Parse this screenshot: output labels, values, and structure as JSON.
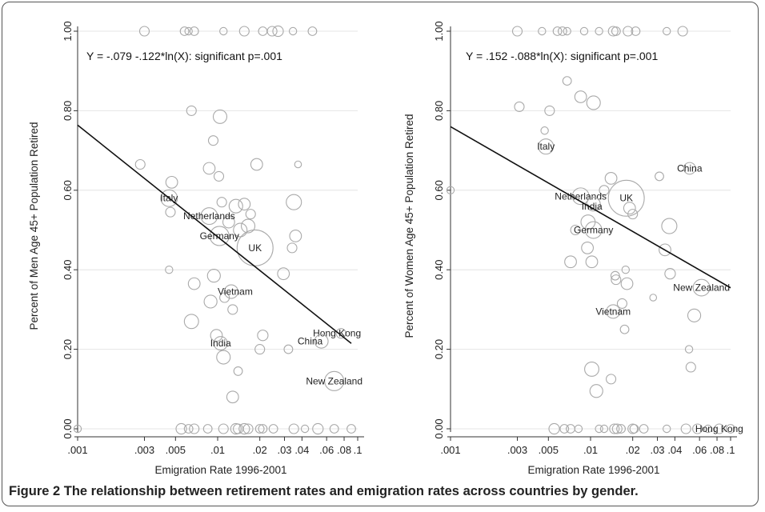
{
  "caption": "Figure 2 The relationship between retirement rates and emigration rates across countries by gender.",
  "chart_data": [
    {
      "type": "scatter",
      "subtitle": "Y =  -.079 -.122*ln(X): significant p=.001",
      "xlabel": "Emigration Rate 1996-2001",
      "ylabel": "Percent of Men Age 45+ Population Retired",
      "xscale": "log",
      "xlim": [
        0.001,
        0.1
      ],
      "ylim": [
        0,
        1
      ],
      "x_ticks": [
        ".001",
        ".003",
        ".005",
        ".01",
        ".02",
        ".03",
        ".04",
        ".06",
        ".08",
        ".1"
      ],
      "y_ticks": [
        "0.00",
        "0.20",
        "0.40",
        "0.60",
        "0.80",
        "1.00"
      ],
      "grid": true,
      "fit_line": {
        "intercept": -0.079,
        "slope": -0.122,
        "x_range": [
          0.001,
          0.09
        ]
      },
      "labeled_points": [
        {
          "label": "Italy",
          "x": 0.0045,
          "y": 0.58,
          "size": 3
        },
        {
          "label": "Netherlands",
          "x": 0.0087,
          "y": 0.535,
          "size": 3
        },
        {
          "label": "Germany",
          "x": 0.0103,
          "y": 0.485,
          "size": 4
        },
        {
          "label": "UK",
          "x": 0.0185,
          "y": 0.455,
          "size": 14
        },
        {
          "label": "Vietnam",
          "x": 0.0125,
          "y": 0.345,
          "size": 2
        },
        {
          "label": "India",
          "x": 0.0105,
          "y": 0.215,
          "size": 2
        },
        {
          "label": "Hong Kong",
          "x": 0.076,
          "y": 0.24,
          "size": 1
        },
        {
          "label": "China",
          "x": 0.055,
          "y": 0.22,
          "size": 2
        },
        {
          "label": "New Zealand",
          "x": 0.068,
          "y": 0.12,
          "size": 4
        }
      ],
      "points": [
        {
          "x": 0.0028,
          "y": 0.665,
          "size": 1
        },
        {
          "x": 0.0047,
          "y": 0.62,
          "size": 1.5
        },
        {
          "x": 0.0046,
          "y": 0.545,
          "size": 1
        },
        {
          "x": 0.0045,
          "y": 0.4,
          "size": 0.6
        },
        {
          "x": 0.0065,
          "y": 0.8,
          "size": 1
        },
        {
          "x": 0.0104,
          "y": 0.785,
          "size": 2
        },
        {
          "x": 0.0093,
          "y": 0.725,
          "size": 1
        },
        {
          "x": 0.0087,
          "y": 0.655,
          "size": 1.5
        },
        {
          "x": 0.0102,
          "y": 0.635,
          "size": 1
        },
        {
          "x": 0.0107,
          "y": 0.57,
          "size": 1
        },
        {
          "x": 0.012,
          "y": 0.52,
          "size": 1.5
        },
        {
          "x": 0.0135,
          "y": 0.56,
          "size": 2
        },
        {
          "x": 0.0155,
          "y": 0.565,
          "size": 1.5
        },
        {
          "x": 0.0172,
          "y": 0.54,
          "size": 1
        },
        {
          "x": 0.019,
          "y": 0.665,
          "size": 1.5
        },
        {
          "x": 0.0165,
          "y": 0.51,
          "size": 2
        },
        {
          "x": 0.0145,
          "y": 0.5,
          "size": 2
        },
        {
          "x": 0.035,
          "y": 0.57,
          "size": 2.5
        },
        {
          "x": 0.036,
          "y": 0.485,
          "size": 1.5
        },
        {
          "x": 0.034,
          "y": 0.455,
          "size": 1
        },
        {
          "x": 0.0375,
          "y": 0.665,
          "size": 0.5
        },
        {
          "x": 0.0295,
          "y": 0.39,
          "size": 1.5
        },
        {
          "x": 0.0068,
          "y": 0.365,
          "size": 1.5
        },
        {
          "x": 0.0089,
          "y": 0.32,
          "size": 1.8
        },
        {
          "x": 0.0094,
          "y": 0.385,
          "size": 1.8
        },
        {
          "x": 0.0112,
          "y": 0.33,
          "size": 1
        },
        {
          "x": 0.0128,
          "y": 0.3,
          "size": 1
        },
        {
          "x": 0.0065,
          "y": 0.27,
          "size": 2.2
        },
        {
          "x": 0.0098,
          "y": 0.235,
          "size": 1.5
        },
        {
          "x": 0.011,
          "y": 0.18,
          "size": 2
        },
        {
          "x": 0.014,
          "y": 0.145,
          "size": 0.8
        },
        {
          "x": 0.0128,
          "y": 0.08,
          "size": 1.5
        },
        {
          "x": 0.021,
          "y": 0.235,
          "size": 1.2
        },
        {
          "x": 0.02,
          "y": 0.2,
          "size": 1
        },
        {
          "x": 0.032,
          "y": 0.2,
          "size": 0.8
        },
        {
          "x": 0.003,
          "y": 1.0,
          "size": 1
        },
        {
          "x": 0.0058,
          "y": 1.0,
          "size": 0.8
        },
        {
          "x": 0.0062,
          "y": 1.0,
          "size": 0.6
        },
        {
          "x": 0.0068,
          "y": 1.0,
          "size": 0.8
        },
        {
          "x": 0.011,
          "y": 1.0,
          "size": 0.6
        },
        {
          "x": 0.0155,
          "y": 1.0,
          "size": 1
        },
        {
          "x": 0.021,
          "y": 1.0,
          "size": 0.8
        },
        {
          "x": 0.0245,
          "y": 1.0,
          "size": 1
        },
        {
          "x": 0.027,
          "y": 1.0,
          "size": 1.2
        },
        {
          "x": 0.0345,
          "y": 1.0,
          "size": 0.6
        },
        {
          "x": 0.0475,
          "y": 1.0,
          "size": 0.8
        },
        {
          "x": 0.001,
          "y": 0.0,
          "size": 0.6
        },
        {
          "x": 0.0055,
          "y": 0.0,
          "size": 1.2
        },
        {
          "x": 0.0062,
          "y": 0.0,
          "size": 0.8
        },
        {
          "x": 0.0068,
          "y": 0.0,
          "size": 1
        },
        {
          "x": 0.0085,
          "y": 0.0,
          "size": 0.8
        },
        {
          "x": 0.011,
          "y": 0.0,
          "size": 1
        },
        {
          "x": 0.0135,
          "y": 0.0,
          "size": 1.2
        },
        {
          "x": 0.014,
          "y": 0.0,
          "size": 1
        },
        {
          "x": 0.0155,
          "y": 0.0,
          "size": 1.2
        },
        {
          "x": 0.0165,
          "y": 0.0,
          "size": 1
        },
        {
          "x": 0.02,
          "y": 0.0,
          "size": 0.8
        },
        {
          "x": 0.021,
          "y": 0.0,
          "size": 0.8
        },
        {
          "x": 0.025,
          "y": 0.0,
          "size": 0.8
        },
        {
          "x": 0.035,
          "y": 0.0,
          "size": 1
        },
        {
          "x": 0.042,
          "y": 0.0,
          "size": 0.6
        },
        {
          "x": 0.052,
          "y": 0.0,
          "size": 1.2
        },
        {
          "x": 0.068,
          "y": 0.0,
          "size": 0.8
        },
        {
          "x": 0.09,
          "y": 0.0,
          "size": 0.8
        }
      ]
    },
    {
      "type": "scatter",
      "subtitle": "Y = .152 -.088*ln(X): significant p=.001",
      "xlabel": "Emigration Rate 1996-2001",
      "ylabel": "Percent of Women Age 45+ Population Retired",
      "xscale": "log",
      "xlim": [
        0.001,
        0.1
      ],
      "ylim": [
        0,
        1
      ],
      "x_ticks": [
        ".001",
        ".003",
        ".005",
        ".01",
        ".02",
        ".03",
        ".04",
        ".06",
        ".08",
        ".1"
      ],
      "y_ticks": [
        "0.00",
        "0.20",
        "0.40",
        "0.60",
        "0.80",
        "1.00"
      ],
      "grid": true,
      "fit_line": {
        "intercept": 0.152,
        "slope": -0.088,
        "x_range": [
          0.001,
          0.1
        ]
      },
      "labeled_points": [
        {
          "label": "Italy",
          "x": 0.0048,
          "y": 0.71,
          "size": 2.5
        },
        {
          "label": "Netherlands",
          "x": 0.0085,
          "y": 0.585,
          "size": 3
        },
        {
          "label": "India",
          "x": 0.0105,
          "y": 0.565,
          "size": 2
        },
        {
          "label": "UK",
          "x": 0.018,
          "y": 0.58,
          "size": 14
        },
        {
          "label": "Germany",
          "x": 0.0105,
          "y": 0.5,
          "size": 3
        },
        {
          "label": "China",
          "x": 0.051,
          "y": 0.655,
          "size": 1.5
        },
        {
          "label": "New Zealand",
          "x": 0.062,
          "y": 0.355,
          "size": 3
        },
        {
          "label": "Vietnam",
          "x": 0.0145,
          "y": 0.295,
          "size": 2
        },
        {
          "label": "Hong Kong",
          "x": 0.083,
          "y": 0.0,
          "size": 1
        }
      ],
      "points": [
        {
          "x": 0.001,
          "y": 0.6,
          "size": 0.6
        },
        {
          "x": 0.0031,
          "y": 0.81,
          "size": 1
        },
        {
          "x": 0.0047,
          "y": 0.75,
          "size": 0.6
        },
        {
          "x": 0.0051,
          "y": 0.8,
          "size": 1
        },
        {
          "x": 0.0068,
          "y": 0.875,
          "size": 0.8
        },
        {
          "x": 0.0085,
          "y": 0.835,
          "size": 1.5
        },
        {
          "x": 0.0105,
          "y": 0.82,
          "size": 2
        },
        {
          "x": 0.014,
          "y": 0.63,
          "size": 1.5
        },
        {
          "x": 0.0125,
          "y": 0.6,
          "size": 1
        },
        {
          "x": 0.019,
          "y": 0.555,
          "size": 1.5
        },
        {
          "x": 0.02,
          "y": 0.54,
          "size": 1
        },
        {
          "x": 0.031,
          "y": 0.635,
          "size": 0.8
        },
        {
          "x": 0.0365,
          "y": 0.51,
          "size": 2.5
        },
        {
          "x": 0.034,
          "y": 0.45,
          "size": 1.5
        },
        {
          "x": 0.037,
          "y": 0.39,
          "size": 1.2
        },
        {
          "x": 0.0096,
          "y": 0.52,
          "size": 2.2
        },
        {
          "x": 0.0078,
          "y": 0.5,
          "size": 1
        },
        {
          "x": 0.0095,
          "y": 0.455,
          "size": 1.5
        },
        {
          "x": 0.0072,
          "y": 0.42,
          "size": 1.5
        },
        {
          "x": 0.0102,
          "y": 0.42,
          "size": 1.5
        },
        {
          "x": 0.015,
          "y": 0.385,
          "size": 0.8
        },
        {
          "x": 0.0152,
          "y": 0.375,
          "size": 1
        },
        {
          "x": 0.0178,
          "y": 0.4,
          "size": 0.6
        },
        {
          "x": 0.0182,
          "y": 0.365,
          "size": 1.5
        },
        {
          "x": 0.0168,
          "y": 0.315,
          "size": 1
        },
        {
          "x": 0.028,
          "y": 0.33,
          "size": 0.5
        },
        {
          "x": 0.0175,
          "y": 0.25,
          "size": 0.8
        },
        {
          "x": 0.0102,
          "y": 0.15,
          "size": 2.2
        },
        {
          "x": 0.011,
          "y": 0.095,
          "size": 1.8
        },
        {
          "x": 0.014,
          "y": 0.125,
          "size": 1
        },
        {
          "x": 0.0505,
          "y": 0.2,
          "size": 0.6
        },
        {
          "x": 0.052,
          "y": 0.155,
          "size": 1
        },
        {
          "x": 0.055,
          "y": 0.285,
          "size": 1.8
        },
        {
          "x": 0.003,
          "y": 1.0,
          "size": 1
        },
        {
          "x": 0.0045,
          "y": 1.0,
          "size": 0.6
        },
        {
          "x": 0.0058,
          "y": 1.0,
          "size": 0.8
        },
        {
          "x": 0.0063,
          "y": 1.0,
          "size": 0.8
        },
        {
          "x": 0.0068,
          "y": 1.0,
          "size": 0.6
        },
        {
          "x": 0.009,
          "y": 1.0,
          "size": 0.6
        },
        {
          "x": 0.0115,
          "y": 1.0,
          "size": 0.6
        },
        {
          "x": 0.0145,
          "y": 1.0,
          "size": 1
        },
        {
          "x": 0.0152,
          "y": 1.0,
          "size": 0.8
        },
        {
          "x": 0.0185,
          "y": 1.0,
          "size": 1
        },
        {
          "x": 0.021,
          "y": 1.0,
          "size": 0.8
        },
        {
          "x": 0.035,
          "y": 1.0,
          "size": 0.6
        },
        {
          "x": 0.0455,
          "y": 1.0,
          "size": 1
        },
        {
          "x": 0.0055,
          "y": 0.0,
          "size": 1.2
        },
        {
          "x": 0.0065,
          "y": 0.0,
          "size": 0.8
        },
        {
          "x": 0.0072,
          "y": 0.0,
          "size": 0.8
        },
        {
          "x": 0.0082,
          "y": 0.0,
          "size": 0.6
        },
        {
          "x": 0.0115,
          "y": 0.0,
          "size": 0.6
        },
        {
          "x": 0.0125,
          "y": 0.0,
          "size": 0.6
        },
        {
          "x": 0.0148,
          "y": 0.0,
          "size": 1
        },
        {
          "x": 0.0155,
          "y": 0.0,
          "size": 1
        },
        {
          "x": 0.0165,
          "y": 0.0,
          "size": 0.8
        },
        {
          "x": 0.02,
          "y": 0.0,
          "size": 1
        },
        {
          "x": 0.0205,
          "y": 0.0,
          "size": 0.8
        },
        {
          "x": 0.024,
          "y": 0.0,
          "size": 0.8
        },
        {
          "x": 0.035,
          "y": 0.0,
          "size": 0.6
        },
        {
          "x": 0.048,
          "y": 0.0,
          "size": 1
        },
        {
          "x": 0.058,
          "y": 0.0,
          "size": 1
        },
        {
          "x": 0.069,
          "y": 0.0,
          "size": 0.6
        },
        {
          "x": 0.1,
          "y": 0.0,
          "size": 0.8
        }
      ]
    }
  ]
}
